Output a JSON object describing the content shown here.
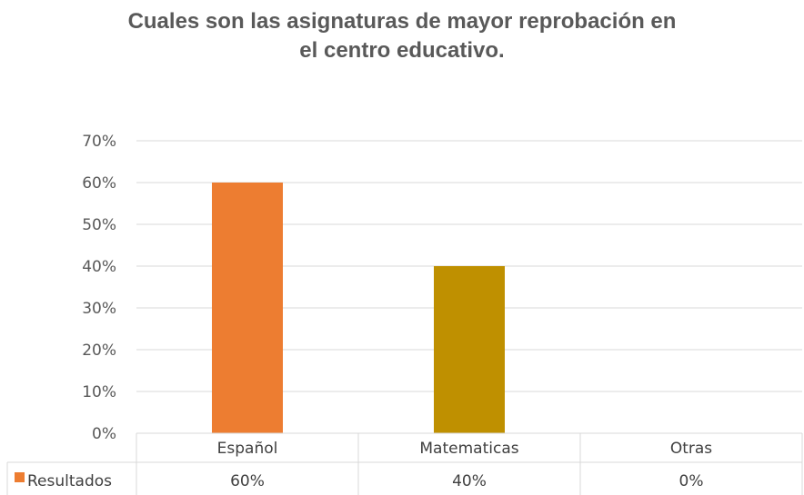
{
  "chart_data": {
    "type": "bar",
    "title_line1": "Cuales son las asignaturas de mayor reprobación en",
    "title_line2": "el centro educativo.",
    "categories": [
      "Español",
      "Matematicas",
      "Otras"
    ],
    "series": [
      {
        "name": "Resultados",
        "values": [
          0.6,
          0.4,
          0.0
        ],
        "labels": [
          "60%",
          "40%",
          "0%"
        ],
        "colors": [
          "#ED7D31",
          "#BF9000",
          "#A5A5A5"
        ]
      }
    ],
    "yticks": [
      "0%",
      "10%",
      "20%",
      "30%",
      "40%",
      "50%",
      "60%",
      "70%"
    ],
    "ylim": [
      0,
      0.7
    ],
    "grid": true,
    "legend": "data-table",
    "legend_color": "#ED7D31"
  }
}
